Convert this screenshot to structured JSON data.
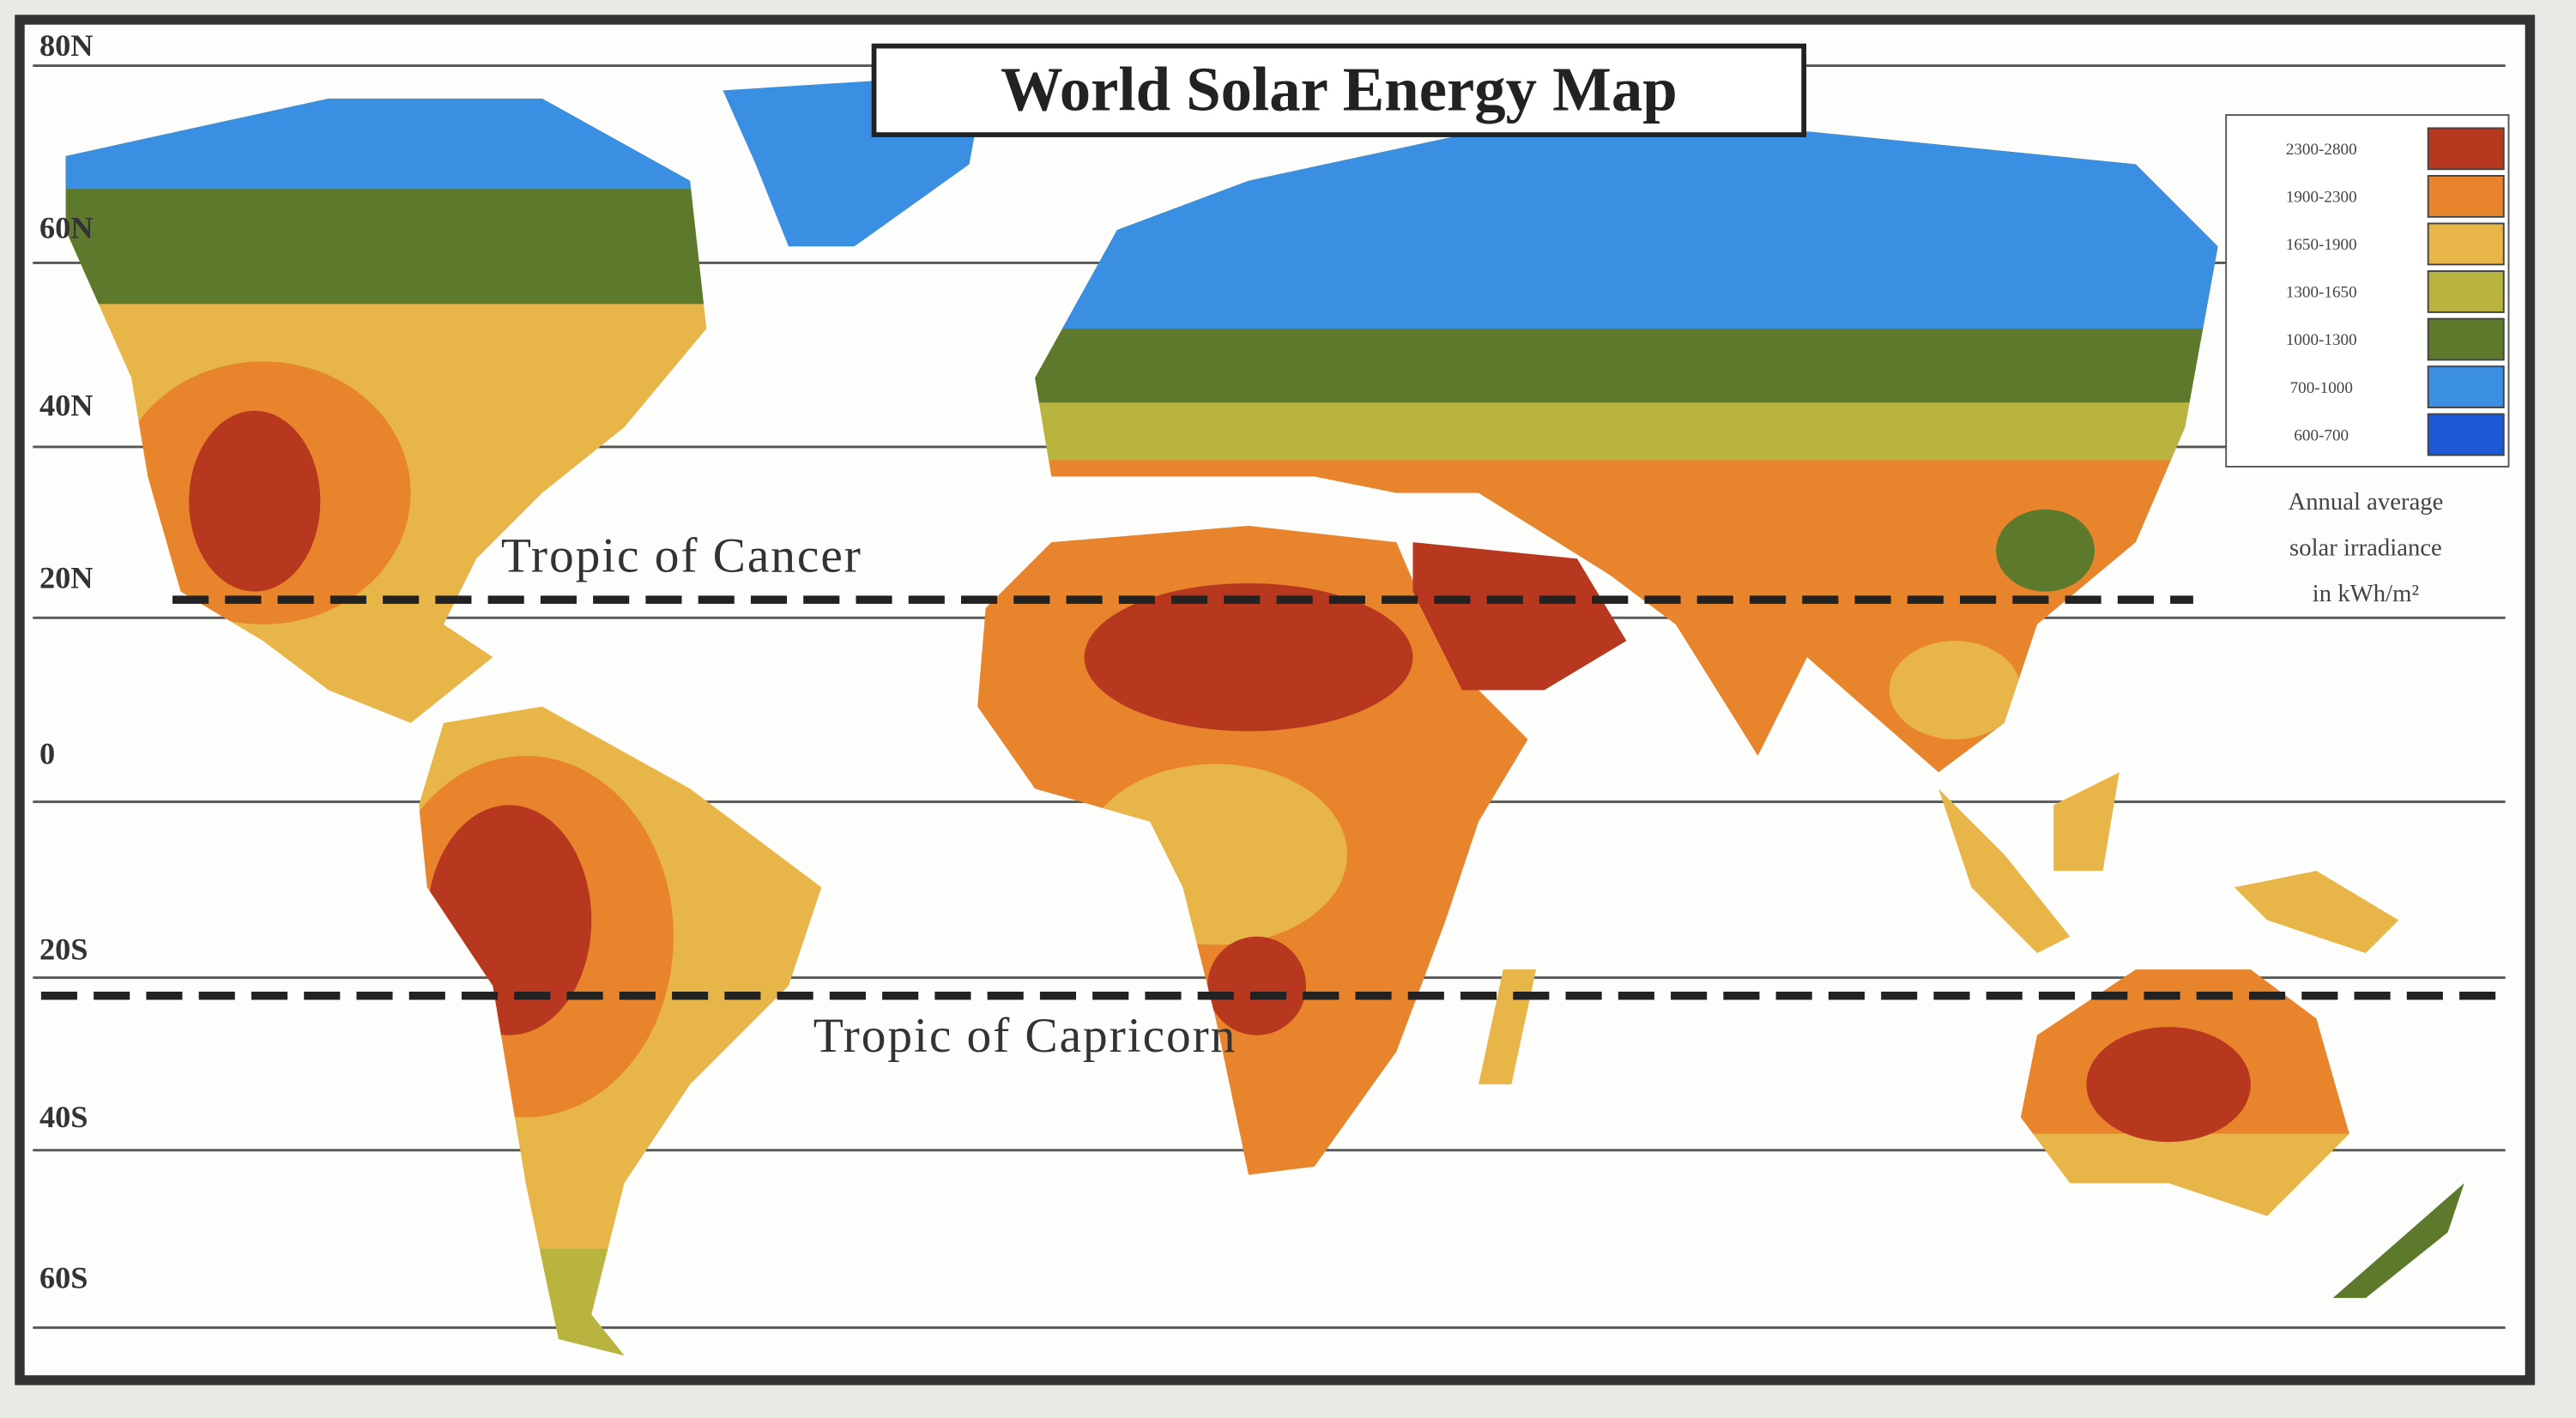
{
  "title": "World Solar Energy Map",
  "latitude_labels": [
    "80N",
    "60N",
    "40N",
    "20N",
    "0",
    "20S",
    "40S",
    "60S"
  ],
  "tropics": [
    "Tropic of Cancer",
    "Tropic of Capricorn"
  ],
  "legend": {
    "items": [
      {
        "label": "2300-2800",
        "color": "#b8381f"
      },
      {
        "label": "1900-2300",
        "color": "#e8842c"
      },
      {
        "label": "1650-1900",
        "color": "#e8b648"
      },
      {
        "label": "1300-1650",
        "color": "#b9b43f"
      },
      {
        "label": "1000-1300",
        "color": "#5d7a2c"
      },
      {
        "label": "700-1000",
        "color": "#3b8fe2"
      },
      {
        "label": "600-700",
        "color": "#1f58d6"
      }
    ],
    "caption": [
      "Annual average",
      "solar irradiance",
      "in kWh/m²"
    ]
  }
}
